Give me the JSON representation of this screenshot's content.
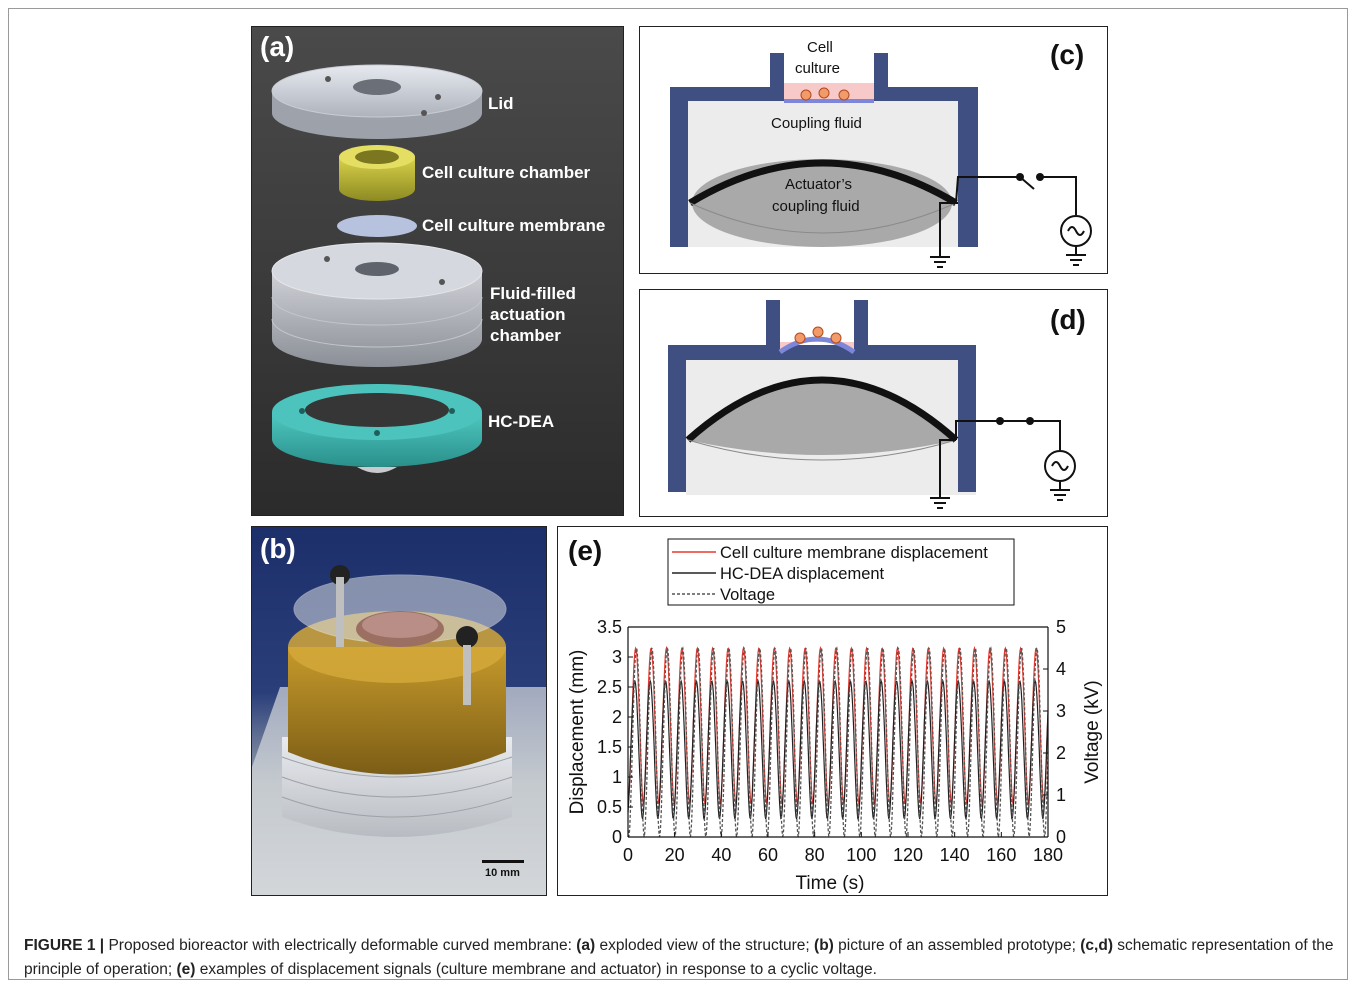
{
  "panels": {
    "a": {
      "label": "(a)",
      "parts": [
        "Lid",
        "Cell culture chamber",
        "Cell culture membrane",
        "Fluid-filled actuation chamber",
        "HC-DEA"
      ],
      "fluid_lines": [
        "Fluid-filled",
        "actuation",
        "chamber"
      ]
    },
    "b": {
      "label": "(b)",
      "scale_bar": "10 mm"
    },
    "c": {
      "label": "(c)",
      "cell_culture_lines": [
        "Cell",
        "culture"
      ],
      "coupling_fluid": "Coupling fluid",
      "actuator_lines": [
        "Actuator’s",
        "coupling fluid"
      ]
    },
    "d": {
      "label": "(d)"
    },
    "e": {
      "label": "(e)"
    }
  },
  "chart_data": {
    "type": "line",
    "xlabel": "Time (s)",
    "ylabel": "Displacement (mm)",
    "y2label": "Voltage (kV)",
    "xlim": [
      0,
      180
    ],
    "ylim": [
      0,
      3.5
    ],
    "y2lim": [
      0,
      5
    ],
    "xticks": [
      0,
      20,
      40,
      60,
      80,
      100,
      120,
      140,
      160,
      180
    ],
    "yticks": [
      "0",
      "0.5",
      "1",
      "1.5",
      "2",
      "2.5",
      "3",
      "3.5"
    ],
    "y2ticks": [
      "0",
      "1",
      "2",
      "3",
      "4",
      "5"
    ],
    "legend_position": "top",
    "series": [
      {
        "name": "Cell culture membrane displacement",
        "color": "#e8392f",
        "style": "solid",
        "period_s": 6.6,
        "min": 0.55,
        "max": 3.15,
        "axis": "left"
      },
      {
        "name": "HC-DEA displacement",
        "color": "#222222",
        "style": "solid",
        "period_s": 6.6,
        "min": 0.3,
        "max": 2.6,
        "axis": "left"
      },
      {
        "name": "Voltage",
        "color": "#555555",
        "style": "dashed",
        "period_s": 6.6,
        "min": 0.0,
        "max": 4.5,
        "axis": "right"
      }
    ]
  },
  "caption": {
    "fig": "FIGURE 1 |",
    "t1": " Proposed bioreactor with electrically deformable curved membrane: ",
    "k1": "(a)",
    "t2": " exploded view of the structure; ",
    "k2": "(b)",
    "t3": " picture of an assembled prototype; ",
    "k3": "(c,d)",
    "t4": " schematic representation of the principle of operation; ",
    "k4": "(e)",
    "t5": " examples of displacement signals (culture membrane and actuator) in response to a cyclic voltage."
  }
}
